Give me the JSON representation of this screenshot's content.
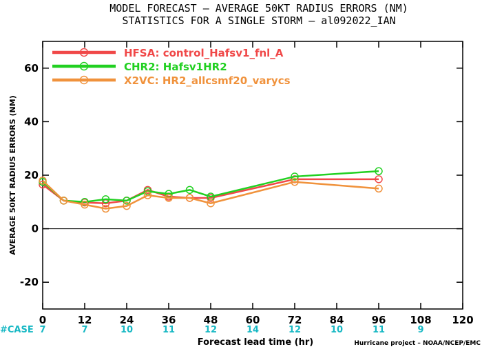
{
  "title_line1": "MODEL FORECAST – AVERAGE 50KT RADIUS ERRORS (NM)",
  "title_line2": "STATISTICS FOR A SINGLE STORM – al092022_IAN",
  "credit": "Hurricane project – NOAA/NCEP/EMC",
  "case_label": "#CASE",
  "colors": {
    "case": "#17b8c4",
    "zero_line": "#000000"
  },
  "chart_data": {
    "type": "line",
    "title": "MODEL FORECAST – AVERAGE 50KT RADIUS ERRORS (NM)",
    "subtitle": "STATISTICS FOR A SINGLE STORM – al092022_IAN",
    "xlabel": "Forecast lead time (hr)",
    "ylabel": "AVERAGE 50KT RADIUS ERRORS (NM)",
    "xlim": [
      0,
      120
    ],
    "ylim": [
      -30,
      70
    ],
    "xticks": [
      0,
      12,
      24,
      36,
      48,
      60,
      72,
      84,
      96,
      108,
      120
    ],
    "yticks": [
      -20,
      0,
      20,
      40,
      60
    ],
    "legend": "top-left",
    "grid": false,
    "series": [
      {
        "name": "HFSA: control_Hafsv1_fnl_A",
        "color": "#f04848",
        "x": [
          0,
          6,
          12,
          18,
          24,
          30,
          36,
          42,
          48,
          72,
          96
        ],
        "y": [
          16.5,
          10.5,
          9.8,
          9.5,
          10.5,
          14.5,
          12.0,
          11.5,
          11.5,
          18.5,
          18.5
        ]
      },
      {
        "name": "CHR2: Hafsv1HR2",
        "color": "#21d021",
        "x": [
          0,
          6,
          12,
          18,
          24,
          30,
          36,
          42,
          48,
          72,
          96
        ],
        "y": [
          17.5,
          10.5,
          10.0,
          11.0,
          10.5,
          14.0,
          13.0,
          14.5,
          12.0,
          19.5,
          21.5
        ]
      },
      {
        "name": "X2VC: HR2_allcsmf20_varycs",
        "color": "#f0923c",
        "x": [
          0,
          6,
          12,
          18,
          24,
          30,
          36,
          42,
          48,
          72,
          96
        ],
        "y": [
          18.0,
          10.5,
          9.0,
          7.5,
          8.5,
          12.5,
          11.5,
          11.5,
          9.5,
          17.5,
          15.0
        ]
      }
    ],
    "cases": [
      {
        "x": 0,
        "n": "7"
      },
      {
        "x": 12,
        "n": "7"
      },
      {
        "x": 24,
        "n": "10"
      },
      {
        "x": 36,
        "n": "11"
      },
      {
        "x": 48,
        "n": "12"
      },
      {
        "x": 60,
        "n": "14"
      },
      {
        "x": 72,
        "n": "12"
      },
      {
        "x": 84,
        "n": "10"
      },
      {
        "x": 96,
        "n": "11"
      },
      {
        "x": 108,
        "n": "9"
      }
    ]
  }
}
